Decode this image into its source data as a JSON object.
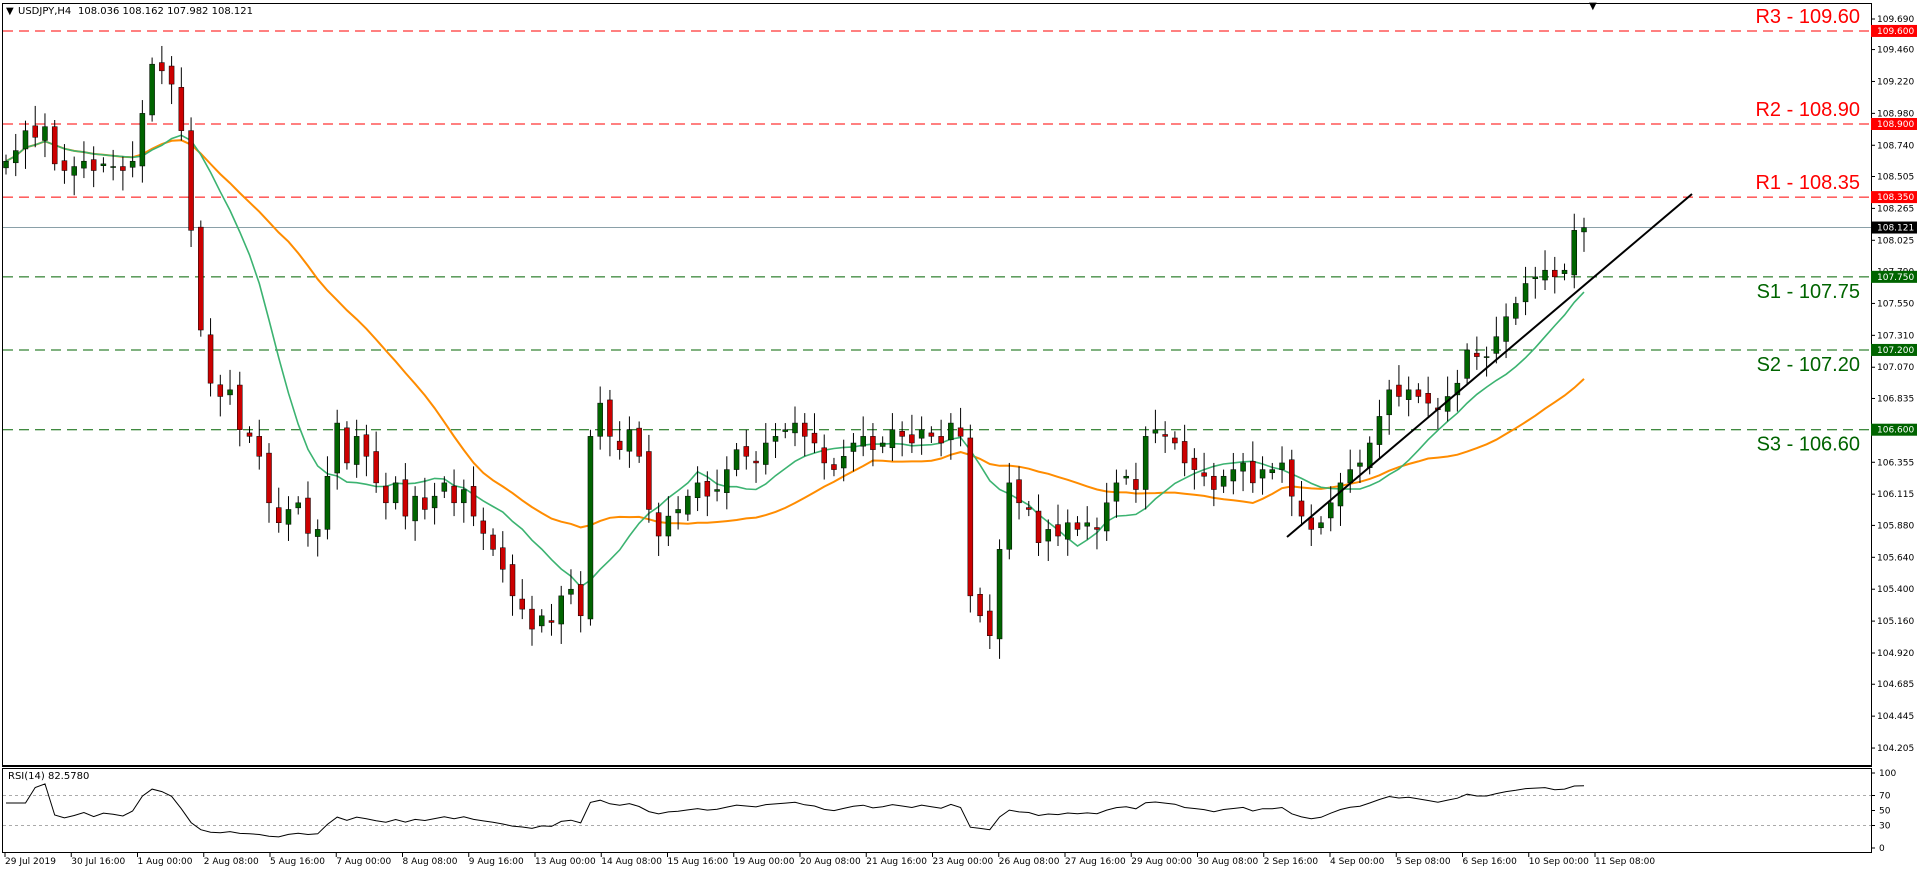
{
  "header": {
    "symbol": "USDJPY,H4",
    "ohlc": "108.036 108.162 107.982 108.121"
  },
  "rsi_header": "RSI(14) 82.5780",
  "chart_data": {
    "type": "candlestick",
    "price_axis": {
      "ylim": [
        104.1,
        109.72
      ],
      "ticks": [
        "109.690",
        "109.460",
        "109.220",
        "108.980",
        "108.740",
        "108.505",
        "108.265",
        "108.025",
        "107.790",
        "107.550",
        "107.310",
        "107.070",
        "106.835",
        "106.595",
        "106.355",
        "106.115",
        "105.880",
        "105.640",
        "105.400",
        "105.160",
        "104.920",
        "104.685",
        "104.445",
        "104.205"
      ]
    },
    "x_labels": [
      "29 Jul 2019",
      "30 Jul 16:00",
      "1 Aug 00:00",
      "2 Aug 08:00",
      "5 Aug 16:00",
      "7 Aug 00:00",
      "8 Aug 08:00",
      "9 Aug 16:00",
      "13 Aug 00:00",
      "14 Aug 08:00",
      "15 Aug 16:00",
      "19 Aug 00:00",
      "20 Aug 08:00",
      "21 Aug 16:00",
      "23 Aug 00:00",
      "26 Aug 08:00",
      "27 Aug 16:00",
      "29 Aug 00:00",
      "30 Aug 08:00",
      "2 Sep 16:00",
      "4 Sep 00:00",
      "5 Sep 08:00",
      "6 Sep 16:00",
      "10 Sep 00:00",
      "11 Sep 08:00"
    ],
    "levels": [
      {
        "name": "R3 - 109.60",
        "value": 109.6,
        "tag": "109.600",
        "kind": "resistance"
      },
      {
        "name": "R2 - 108.90",
        "value": 108.9,
        "tag": "108.900",
        "kind": "resistance"
      },
      {
        "name": "R1 - 108.35",
        "value": 108.35,
        "tag": "108.350",
        "kind": "resistance"
      },
      {
        "name": "S1 - 107.75",
        "value": 107.75,
        "tag": "107.750",
        "kind": "support"
      },
      {
        "name": "S2 - 107.20",
        "value": 107.2,
        "tag": "107.200",
        "kind": "support"
      },
      {
        "name": "S3 - 106.60",
        "value": 106.6,
        "tag": "106.600",
        "kind": "support"
      }
    ],
    "current_price": {
      "value": 108.121,
      "tag": "108.121"
    },
    "series_close": [
      108.62,
      108.7,
      108.85,
      108.8,
      108.88,
      108.6,
      108.55,
      108.58,
      108.62,
      108.55,
      108.6,
      108.58,
      108.55,
      108.62,
      108.98,
      109.35,
      109.3,
      109.2,
      108.85,
      108.1,
      107.35,
      106.95,
      106.85,
      106.9,
      106.6,
      106.55,
      106.4,
      106.05,
      105.9,
      106.0,
      106.05,
      105.82,
      105.85,
      106.25,
      106.65,
      106.35,
      106.55,
      106.4,
      106.2,
      106.05,
      106.2,
      105.95,
      106.1,
      106.0,
      106.1,
      106.2,
      106.05,
      106.15,
      105.95,
      105.82,
      105.7,
      105.55,
      105.35,
      105.25,
      105.1,
      105.2,
      105.15,
      105.35,
      105.4,
      105.2,
      106.55,
      106.8,
      106.55,
      106.45,
      106.6,
      106.4,
      106.0,
      105.8,
      105.95,
      106.0,
      106.1,
      106.2,
      106.1,
      106.15,
      106.3,
      106.45,
      106.4,
      106.35,
      106.5,
      106.55,
      106.6,
      106.65,
      106.55,
      106.5,
      106.35,
      106.3,
      106.4,
      106.5,
      106.55,
      106.45,
      106.5,
      106.6,
      106.55,
      106.5,
      106.6,
      106.55,
      106.5,
      106.65,
      106.55,
      105.35,
      105.2,
      105.05,
      105.7,
      106.2,
      106.05,
      106.0,
      105.75,
      105.85,
      105.8,
      105.9,
      105.85,
      105.9,
      105.85,
      106.05,
      106.2,
      106.25,
      106.15,
      106.55,
      106.6,
      106.55,
      106.5,
      106.35,
      106.3,
      106.25,
      106.15,
      106.25,
      106.3,
      106.35,
      106.2,
      106.3,
      106.3,
      106.35,
      106.1,
      105.95,
      105.85,
      105.9,
      106.05,
      106.2,
      106.3,
      106.35,
      106.5,
      106.7,
      106.9,
      106.85,
      106.9,
      106.85,
      106.8,
      106.75,
      106.85,
      106.95,
      107.2,
      107.15,
      107.15,
      107.3,
      107.45,
      107.55,
      107.7,
      107.75,
      107.8,
      107.75,
      107.8,
      108.1,
      108.12
    ]
  }
}
